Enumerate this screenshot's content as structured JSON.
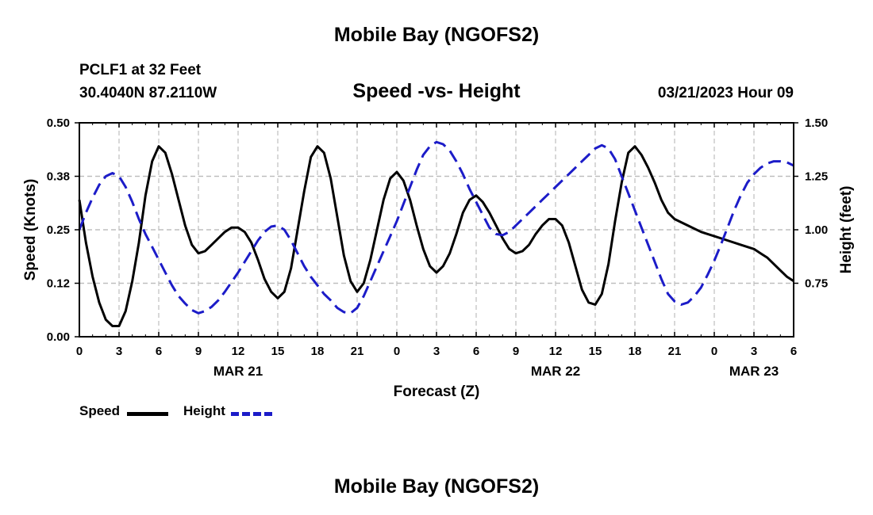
{
  "page": {
    "title": "Mobile Bay (NGOFS2)",
    "footer_title": "Mobile Bay (NGOFS2)",
    "station": "PCLF1 at 32 Feet",
    "coords": "30.4040N  87.2110W",
    "datetime": "03/21/2023 Hour 09"
  },
  "chart_data": {
    "type": "line",
    "title": "Speed -vs- Height",
    "xlabel": "Forecast (Z)",
    "ylabel": "Speed (Knots)",
    "y2label": "Height (feet)",
    "x_range_hours": [
      0,
      54
    ],
    "ylim": [
      0,
      0.5
    ],
    "y2lim": [
      0.5,
      1.5
    ],
    "y_ticks": [
      {
        "v": 0.0,
        "label": "0.00"
      },
      {
        "v": 0.125,
        "label": "0.12"
      },
      {
        "v": 0.25,
        "label": "0.25"
      },
      {
        "v": 0.375,
        "label": "0.38"
      },
      {
        "v": 0.5,
        "label": "0.50"
      }
    ],
    "y2_ticks": [
      {
        "v": 0.75,
        "label": "0.75"
      },
      {
        "v": 1.0,
        "label": "1.00"
      },
      {
        "v": 1.25,
        "label": "1.25"
      },
      {
        "v": 1.5,
        "label": "1.50"
      }
    ],
    "x_ticks": [
      {
        "h": 0,
        "label": "0"
      },
      {
        "h": 3,
        "label": "3"
      },
      {
        "h": 6,
        "label": "6"
      },
      {
        "h": 9,
        "label": "9"
      },
      {
        "h": 12,
        "label": "12"
      },
      {
        "h": 15,
        "label": "15"
      },
      {
        "h": 18,
        "label": "18"
      },
      {
        "h": 21,
        "label": "21"
      },
      {
        "h": 24,
        "label": "0"
      },
      {
        "h": 27,
        "label": "3"
      },
      {
        "h": 30,
        "label": "6"
      },
      {
        "h": 33,
        "label": "9"
      },
      {
        "h": 36,
        "label": "12"
      },
      {
        "h": 39,
        "label": "15"
      },
      {
        "h": 42,
        "label": "18"
      },
      {
        "h": 45,
        "label": "21"
      },
      {
        "h": 48,
        "label": "0"
      },
      {
        "h": 51,
        "label": "3"
      },
      {
        "h": 54,
        "label": "6"
      }
    ],
    "date_labels": [
      {
        "h": 12,
        "label": "MAR 21"
      },
      {
        "h": 36,
        "label": "MAR 22"
      },
      {
        "h": 51,
        "label": "MAR 23"
      }
    ],
    "series": [
      {
        "name": "Speed",
        "axis": "left",
        "color": "#000000",
        "dash": "solid",
        "points": [
          [
            0,
            0.32
          ],
          [
            0.5,
            0.22
          ],
          [
            1,
            0.14
          ],
          [
            1.5,
            0.08
          ],
          [
            2,
            0.04
          ],
          [
            2.5,
            0.025
          ],
          [
            3,
            0.025
          ],
          [
            3.5,
            0.06
          ],
          [
            4,
            0.13
          ],
          [
            4.5,
            0.22
          ],
          [
            5,
            0.33
          ],
          [
            5.5,
            0.41
          ],
          [
            6,
            0.445
          ],
          [
            6.5,
            0.43
          ],
          [
            7,
            0.38
          ],
          [
            7.5,
            0.32
          ],
          [
            8,
            0.26
          ],
          [
            8.5,
            0.215
          ],
          [
            9,
            0.195
          ],
          [
            9.5,
            0.2
          ],
          [
            10,
            0.215
          ],
          [
            10.5,
            0.23
          ],
          [
            11,
            0.245
          ],
          [
            11.5,
            0.255
          ],
          [
            12,
            0.255
          ],
          [
            12.5,
            0.245
          ],
          [
            13,
            0.22
          ],
          [
            13.5,
            0.18
          ],
          [
            14,
            0.135
          ],
          [
            14.5,
            0.105
          ],
          [
            15,
            0.09
          ],
          [
            15.5,
            0.105
          ],
          [
            16,
            0.16
          ],
          [
            16.5,
            0.25
          ],
          [
            17,
            0.34
          ],
          [
            17.5,
            0.42
          ],
          [
            18,
            0.445
          ],
          [
            18.5,
            0.43
          ],
          [
            19,
            0.37
          ],
          [
            19.5,
            0.28
          ],
          [
            20,
            0.19
          ],
          [
            20.5,
            0.13
          ],
          [
            21,
            0.105
          ],
          [
            21.5,
            0.125
          ],
          [
            22,
            0.18
          ],
          [
            22.5,
            0.25
          ],
          [
            23,
            0.32
          ],
          [
            23.5,
            0.37
          ],
          [
            24,
            0.385
          ],
          [
            24.5,
            0.365
          ],
          [
            25,
            0.32
          ],
          [
            25.5,
            0.26
          ],
          [
            26,
            0.205
          ],
          [
            26.5,
            0.165
          ],
          [
            27,
            0.15
          ],
          [
            27.5,
            0.165
          ],
          [
            28,
            0.195
          ],
          [
            28.5,
            0.24
          ],
          [
            29,
            0.29
          ],
          [
            29.5,
            0.32
          ],
          [
            30,
            0.33
          ],
          [
            30.5,
            0.315
          ],
          [
            31,
            0.29
          ],
          [
            31.5,
            0.26
          ],
          [
            32,
            0.23
          ],
          [
            32.5,
            0.205
          ],
          [
            33,
            0.195
          ],
          [
            33.5,
            0.2
          ],
          [
            34,
            0.215
          ],
          [
            34.5,
            0.24
          ],
          [
            35,
            0.26
          ],
          [
            35.5,
            0.275
          ],
          [
            36,
            0.275
          ],
          [
            36.5,
            0.26
          ],
          [
            37,
            0.22
          ],
          [
            37.5,
            0.165
          ],
          [
            38,
            0.11
          ],
          [
            38.5,
            0.08
          ],
          [
            39,
            0.075
          ],
          [
            39.5,
            0.1
          ],
          [
            40,
            0.17
          ],
          [
            40.5,
            0.27
          ],
          [
            41,
            0.36
          ],
          [
            41.5,
            0.43
          ],
          [
            42,
            0.445
          ],
          [
            42.5,
            0.425
          ],
          [
            43,
            0.395
          ],
          [
            43.5,
            0.36
          ],
          [
            44,
            0.32
          ],
          [
            44.5,
            0.29
          ],
          [
            45,
            0.275
          ],
          [
            46,
            0.26
          ],
          [
            47,
            0.245
          ],
          [
            48,
            0.235
          ],
          [
            49,
            0.225
          ],
          [
            50,
            0.215
          ],
          [
            51,
            0.205
          ],
          [
            51.5,
            0.195
          ],
          [
            52,
            0.185
          ],
          [
            52.5,
            0.17
          ],
          [
            53,
            0.155
          ],
          [
            53.5,
            0.14
          ],
          [
            54,
            0.13
          ]
        ]
      },
      {
        "name": "Height",
        "axis": "right",
        "color": "#1c1cc8",
        "dash": "dashed",
        "points": [
          [
            0,
            1.0
          ],
          [
            0.5,
            1.08
          ],
          [
            1,
            1.15
          ],
          [
            1.5,
            1.21
          ],
          [
            2,
            1.25
          ],
          [
            2.5,
            1.265
          ],
          [
            3,
            1.25
          ],
          [
            3.5,
            1.2
          ],
          [
            4,
            1.13
          ],
          [
            4.5,
            1.05
          ],
          [
            5,
            0.98
          ],
          [
            5.5,
            0.92
          ],
          [
            6,
            0.86
          ],
          [
            6.5,
            0.8
          ],
          [
            7,
            0.74
          ],
          [
            7.5,
            0.69
          ],
          [
            8,
            0.655
          ],
          [
            8.5,
            0.625
          ],
          [
            9,
            0.61
          ],
          [
            9.5,
            0.62
          ],
          [
            10,
            0.64
          ],
          [
            10.5,
            0.67
          ],
          [
            11,
            0.71
          ],
          [
            11.5,
            0.755
          ],
          [
            12,
            0.8
          ],
          [
            12.5,
            0.85
          ],
          [
            13,
            0.9
          ],
          [
            13.5,
            0.95
          ],
          [
            14,
            0.99
          ],
          [
            14.5,
            1.015
          ],
          [
            15,
            1.02
          ],
          [
            15.5,
            1.0
          ],
          [
            16,
            0.95
          ],
          [
            16.5,
            0.89
          ],
          [
            17,
            0.83
          ],
          [
            17.5,
            0.78
          ],
          [
            18,
            0.74
          ],
          [
            18.5,
            0.7
          ],
          [
            19,
            0.67
          ],
          [
            19.5,
            0.635
          ],
          [
            20,
            0.615
          ],
          [
            20.5,
            0.61
          ],
          [
            21,
            0.635
          ],
          [
            21.5,
            0.69
          ],
          [
            22,
            0.76
          ],
          [
            22.5,
            0.83
          ],
          [
            23,
            0.9
          ],
          [
            23.5,
            0.97
          ],
          [
            24,
            1.04
          ],
          [
            24.5,
            1.12
          ],
          [
            25,
            1.2
          ],
          [
            25.5,
            1.28
          ],
          [
            26,
            1.35
          ],
          [
            26.5,
            1.39
          ],
          [
            27,
            1.41
          ],
          [
            27.5,
            1.4
          ],
          [
            28,
            1.37
          ],
          [
            28.5,
            1.32
          ],
          [
            29,
            1.26
          ],
          [
            29.5,
            1.19
          ],
          [
            30,
            1.13
          ],
          [
            30.5,
            1.07
          ],
          [
            31,
            1.01
          ],
          [
            31.5,
            0.98
          ],
          [
            32,
            0.975
          ],
          [
            32.5,
            0.99
          ],
          [
            33,
            1.02
          ],
          [
            33.5,
            1.05
          ],
          [
            34,
            1.08
          ],
          [
            34.5,
            1.11
          ],
          [
            35,
            1.14
          ],
          [
            35.5,
            1.17
          ],
          [
            36,
            1.2
          ],
          [
            36.5,
            1.23
          ],
          [
            37,
            1.26
          ],
          [
            37.5,
            1.29
          ],
          [
            38,
            1.32
          ],
          [
            38.5,
            1.35
          ],
          [
            39,
            1.38
          ],
          [
            39.5,
            1.395
          ],
          [
            40,
            1.38
          ],
          [
            40.5,
            1.33
          ],
          [
            41,
            1.25
          ],
          [
            41.5,
            1.17
          ],
          [
            42,
            1.09
          ],
          [
            42.5,
            1.01
          ],
          [
            43,
            0.93
          ],
          [
            43.5,
            0.85
          ],
          [
            44,
            0.77
          ],
          [
            44.5,
            0.7
          ],
          [
            45,
            0.665
          ],
          [
            45.5,
            0.65
          ],
          [
            46,
            0.66
          ],
          [
            46.5,
            0.69
          ],
          [
            47,
            0.73
          ],
          [
            47.5,
            0.79
          ],
          [
            48,
            0.855
          ],
          [
            48.5,
            0.93
          ],
          [
            49,
            1.01
          ],
          [
            49.5,
            1.09
          ],
          [
            50,
            1.16
          ],
          [
            50.5,
            1.22
          ],
          [
            51,
            1.26
          ],
          [
            51.5,
            1.29
          ],
          [
            52,
            1.31
          ],
          [
            52.5,
            1.32
          ],
          [
            53,
            1.32
          ],
          [
            53.5,
            1.315
          ],
          [
            54,
            1.3
          ]
        ]
      }
    ],
    "legend": [
      {
        "name": "Speed",
        "color": "#000000",
        "dash": "solid"
      },
      {
        "name": "Height",
        "color": "#1c1cc8",
        "dash": "dashed"
      }
    ]
  }
}
